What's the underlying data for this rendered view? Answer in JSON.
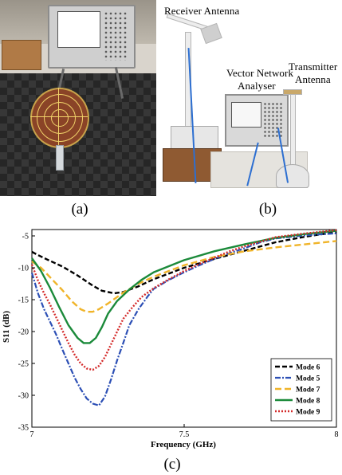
{
  "figure": {
    "panel_a": {
      "caption": "(a)"
    },
    "panel_b": {
      "caption": "(b)",
      "labels": {
        "receiver": "Receiver Antenna",
        "vna_line1": "Vector Network",
        "vna_line2": "Analyser",
        "transmitter_line1": "Transmitter",
        "transmitter_line2": "Antenna"
      }
    },
    "panel_c": {
      "caption": "(c)"
    }
  },
  "chart_data": {
    "type": "line",
    "title": "",
    "xlabel": "Frequency (GHz)",
    "ylabel": "S11 (dB)",
    "xlim": [
      7,
      8
    ],
    "ylim": [
      -35,
      -4
    ],
    "xticks": [
      7,
      7.5,
      8
    ],
    "yticks": [
      -35,
      -30,
      -25,
      -20,
      -15,
      -10,
      -5
    ],
    "grid": false,
    "legend_position": "bottom-right",
    "series": [
      {
        "name": "Mode 6",
        "color": "#000000",
        "dash": "6,3",
        "width": 2.4,
        "x": [
          7.0,
          7.02,
          7.05,
          7.1,
          7.15,
          7.2,
          7.23,
          7.27,
          7.3,
          7.35,
          7.4,
          7.5,
          7.6,
          7.7,
          7.8,
          7.9,
          8.0
        ],
        "y": [
          -7.5,
          -8.0,
          -8.7,
          -9.8,
          -11.2,
          -12.8,
          -13.6,
          -14.0,
          -13.8,
          -12.9,
          -11.8,
          -10.0,
          -8.6,
          -7.3,
          -6.0,
          -5.1,
          -4.4
        ]
      },
      {
        "name": "Mode 5",
        "color": "#2c4fb5",
        "dash": "7,2,2,2",
        "width": 2.2,
        "x": [
          7.0,
          7.02,
          7.04,
          7.06,
          7.08,
          7.1,
          7.12,
          7.14,
          7.16,
          7.18,
          7.2,
          7.22,
          7.24,
          7.26,
          7.28,
          7.3,
          7.32,
          7.35,
          7.38,
          7.4,
          7.45,
          7.5,
          7.55,
          7.6,
          7.65,
          7.7,
          7.75,
          7.8,
          7.9,
          8.0
        ],
        "y": [
          -10.8,
          -14.0,
          -16.5,
          -18.5,
          -20.5,
          -22.8,
          -25.0,
          -27.2,
          -29.0,
          -30.5,
          -31.3,
          -31.6,
          -30.2,
          -27.5,
          -24.5,
          -21.8,
          -19.0,
          -16.5,
          -14.5,
          -13.3,
          -11.9,
          -10.7,
          -9.6,
          -8.6,
          -7.7,
          -6.9,
          -6.0,
          -5.4,
          -4.9,
          -4.6
        ]
      },
      {
        "name": "Mode 7",
        "color": "#f0b429",
        "dash": "8,4",
        "width": 2.4,
        "x": [
          7.0,
          7.03,
          7.06,
          7.1,
          7.13,
          7.16,
          7.18,
          7.2,
          7.22,
          7.25,
          7.3,
          7.35,
          7.4,
          7.5,
          7.6,
          7.7,
          7.8,
          7.9,
          8.0
        ],
        "y": [
          -9.0,
          -10.0,
          -11.5,
          -13.5,
          -15.2,
          -16.5,
          -16.9,
          -16.9,
          -16.5,
          -15.6,
          -13.9,
          -12.5,
          -11.4,
          -9.6,
          -8.3,
          -7.4,
          -6.8,
          -6.3,
          -5.8
        ]
      },
      {
        "name": "Mode 8",
        "color": "#1b8a3a",
        "dash": "",
        "width": 2.4,
        "x": [
          7.0,
          7.03,
          7.06,
          7.09,
          7.12,
          7.15,
          7.17,
          7.19,
          7.21,
          7.23,
          7.25,
          7.28,
          7.32,
          7.36,
          7.4,
          7.5,
          7.6,
          7.7,
          7.8,
          7.9,
          8.0
        ],
        "y": [
          -8.5,
          -10.5,
          -13.2,
          -16.2,
          -19.0,
          -21.0,
          -21.8,
          -21.8,
          -21.0,
          -19.3,
          -17.2,
          -15.2,
          -13.4,
          -11.9,
          -10.7,
          -8.8,
          -7.4,
          -6.3,
          -5.3,
          -4.7,
          -4.2
        ]
      },
      {
        "name": "Mode 9",
        "color": "#d42a2a",
        "dash": "2,2",
        "width": 2.4,
        "x": [
          7.0,
          7.02,
          7.04,
          7.06,
          7.08,
          7.1,
          7.12,
          7.14,
          7.16,
          7.18,
          7.2,
          7.22,
          7.24,
          7.26,
          7.28,
          7.3,
          7.33,
          7.36,
          7.4,
          7.45,
          7.5,
          7.55,
          7.6,
          7.65,
          7.7,
          7.8,
          7.9,
          8.0
        ],
        "y": [
          -9.5,
          -12.0,
          -14.0,
          -15.8,
          -17.8,
          -19.8,
          -21.8,
          -23.6,
          -25.0,
          -25.8,
          -26.0,
          -25.4,
          -24.0,
          -22.0,
          -20.0,
          -18.0,
          -16.2,
          -14.6,
          -13.2,
          -11.8,
          -10.5,
          -9.4,
          -8.4,
          -7.4,
          -6.6,
          -5.2,
          -4.6,
          -4.1
        ]
      }
    ]
  }
}
